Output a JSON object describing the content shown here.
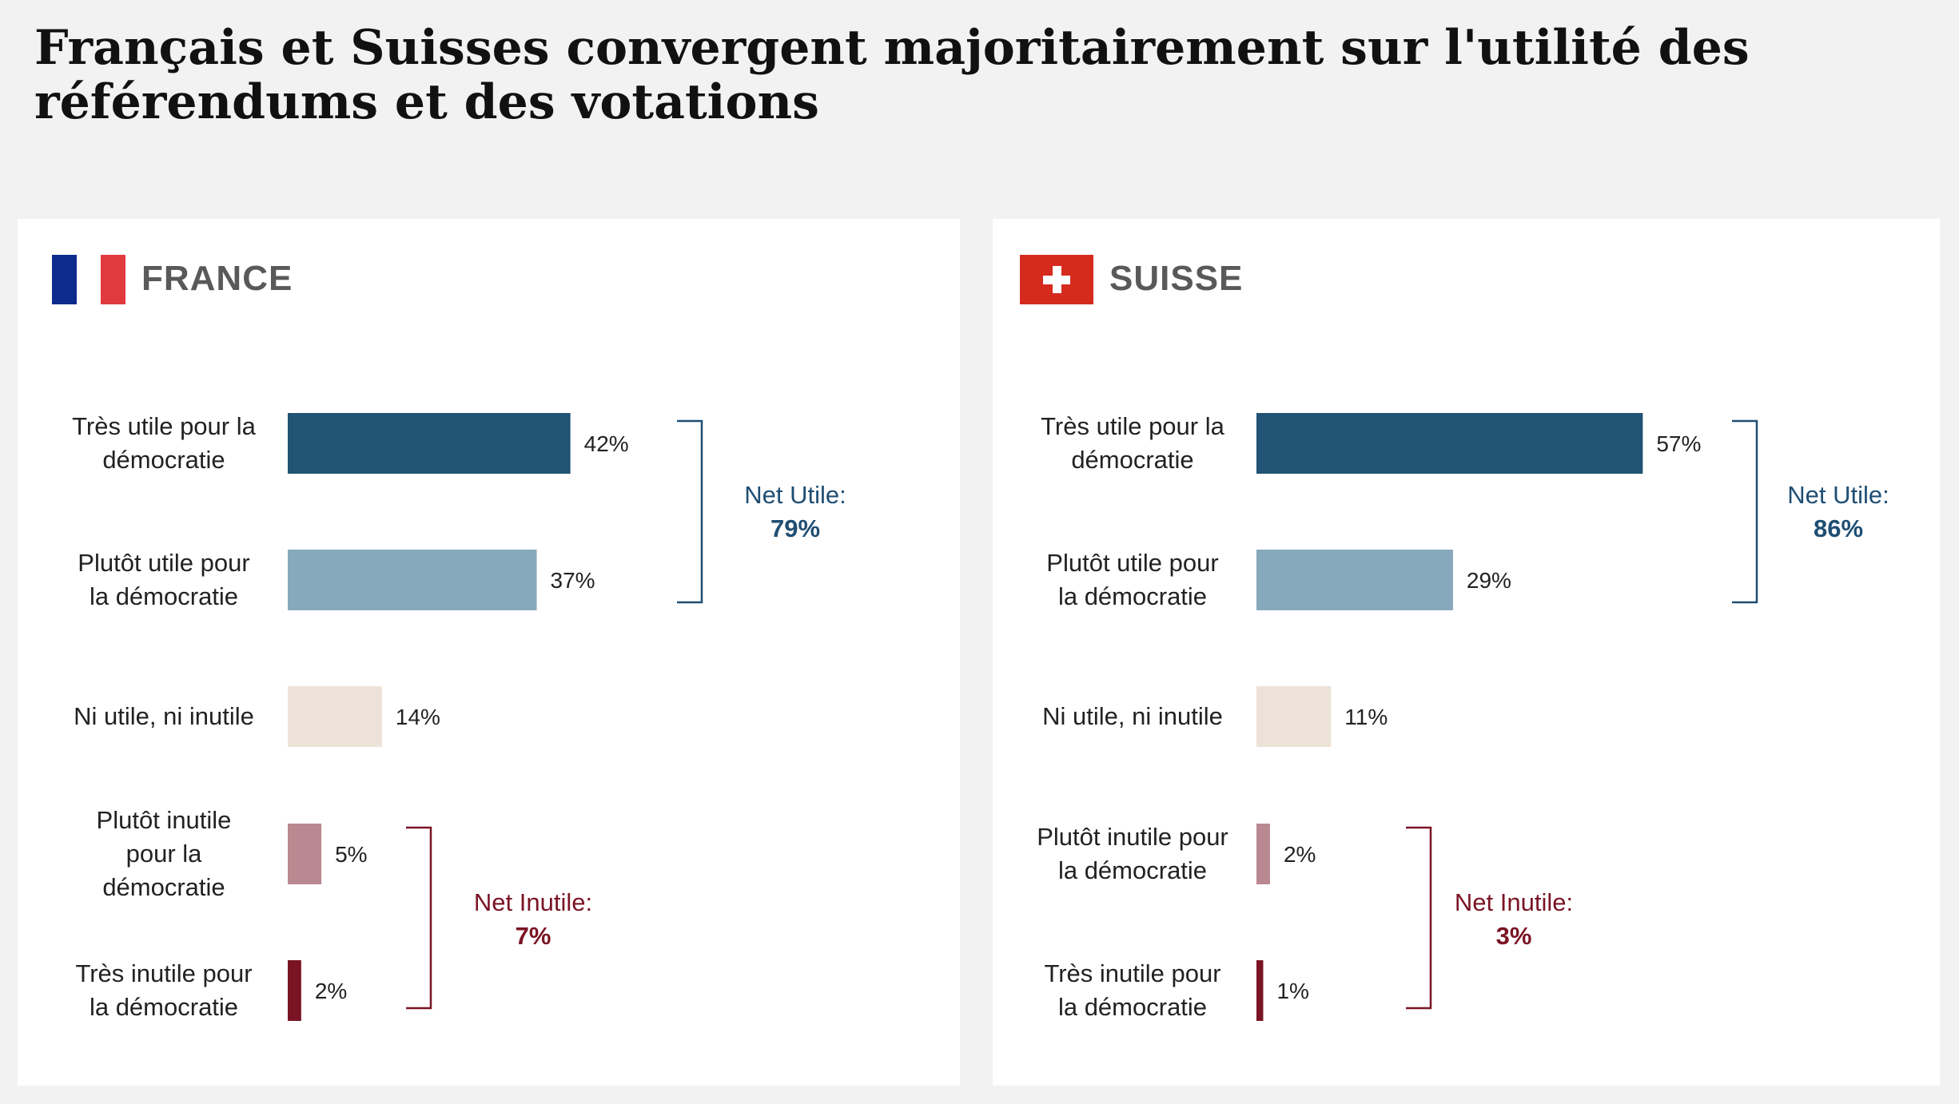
{
  "title": "Français et Suisses convergent majoritairement sur l'utilité des référendums et des votations",
  "colors": {
    "tres_utile": "#215374",
    "plutot_utile": "#87a9bc",
    "ni": "#ede2d8",
    "plutot_inutile": "#b98890",
    "tres_inutile": "#7a1424",
    "net_utile_text": "#1f4e73",
    "net_inutile_text": "#7a1424",
    "france_blue": "#0d2b8c",
    "france_red": "#e03a3e",
    "swiss_red": "#d52b1e"
  },
  "chart_data": [
    {
      "type": "bar",
      "country": "FRANCE",
      "flag_icon": "france-flag-icon",
      "categories": [
        "Très utile pour la démocratie",
        "Plutôt utile pour la démocratie",
        "Ni utile, ni inutile",
        "Plutôt inutile pour la démocratie",
        "Très inutile pour la démocratie"
      ],
      "label_lines": [
        [
          "Très utile pour la",
          "démocratie"
        ],
        [
          "Plutôt utile pour",
          "la démocratie"
        ],
        [
          "Ni utile, ni inutile"
        ],
        [
          "Plutôt inutile",
          "pour la",
          "démocratie"
        ],
        [
          "Très inutile pour",
          "la démocratie"
        ]
      ],
      "values": [
        42,
        37,
        14,
        5,
        2
      ],
      "value_labels": [
        "42%",
        "37%",
        "14%",
        "5%",
        "2%"
      ],
      "net_utile": {
        "label": "Net Utile:",
        "value": "79%"
      },
      "net_inutile": {
        "label": "Net Inutile:",
        "value": "7%"
      }
    },
    {
      "type": "bar",
      "country": "SUISSE",
      "flag_icon": "swiss-flag-icon",
      "categories": [
        "Très utile pour la démocratie",
        "Plutôt utile pour la démocratie",
        "Ni utile, ni inutile",
        "Plutôt inutile pour la démocratie",
        "Très inutile pour la démocratie"
      ],
      "label_lines": [
        [
          "Très utile pour la",
          "démocratie"
        ],
        [
          "Plutôt utile pour",
          "la démocratie"
        ],
        [
          "Ni utile, ni inutile"
        ],
        [
          "Plutôt inutile pour",
          "la démocratie"
        ],
        [
          "Très inutile pour",
          "la démocratie"
        ]
      ],
      "values": [
        57,
        29,
        11,
        2,
        1
      ],
      "value_labels": [
        "57%",
        "29%",
        "11%",
        "2%",
        "1%"
      ],
      "net_utile": {
        "label": "Net Utile:",
        "value": "86%"
      },
      "net_inutile": {
        "label": "Net Inutile:",
        "value": "3%"
      }
    }
  ]
}
